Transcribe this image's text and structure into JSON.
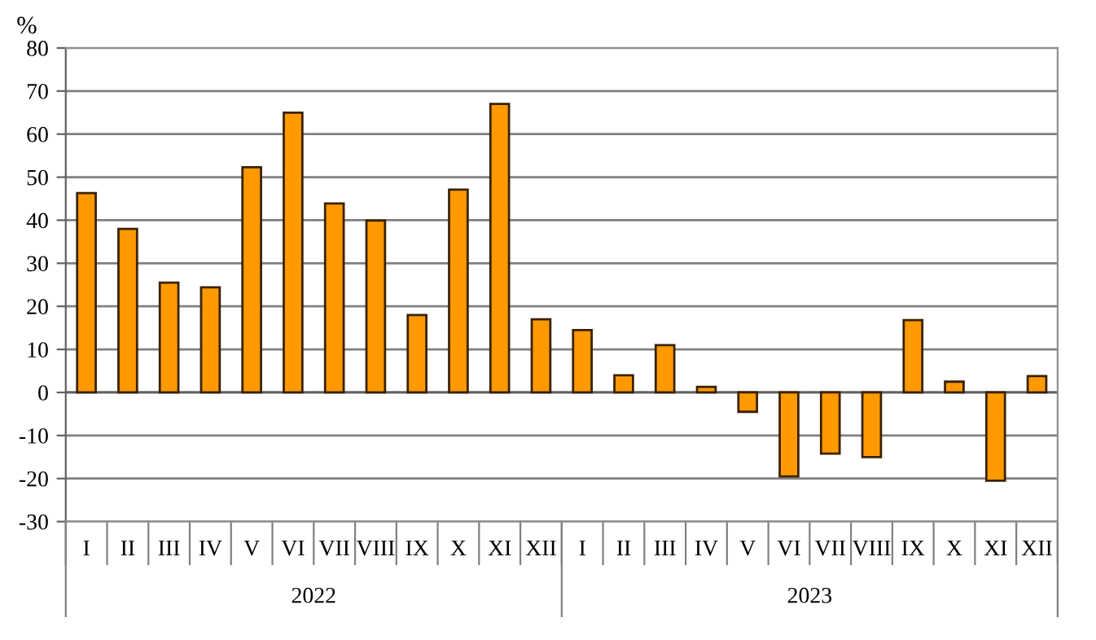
{
  "chart_data": {
    "type": "bar",
    "ylabel": "%",
    "categories": [
      "I",
      "II",
      "III",
      "IV",
      "V",
      "VI",
      "VII",
      "VIII",
      "IX",
      "X",
      "XI",
      "XII",
      "I",
      "II",
      "III",
      "IV",
      "V",
      "VI",
      "VII",
      "VIII",
      "IX",
      "X",
      "XI",
      "XII"
    ],
    "values": [
      46.3,
      38,
      25.5,
      24.4,
      52.3,
      65,
      43.9,
      39.9,
      18,
      47.1,
      67,
      17,
      14.5,
      4,
      11,
      1.3,
      -4.5,
      -19.5,
      -14.2,
      -15,
      16.8,
      2.5,
      -20.5,
      3.8
    ],
    "color": "#ff9900",
    "ylim": [
      -30,
      80
    ],
    "yticks": [
      -30,
      -20,
      -10,
      0,
      10,
      20,
      30,
      40,
      50,
      60,
      70,
      80
    ],
    "grid": "y",
    "annotations": [
      "2022",
      "2023"
    ]
  }
}
